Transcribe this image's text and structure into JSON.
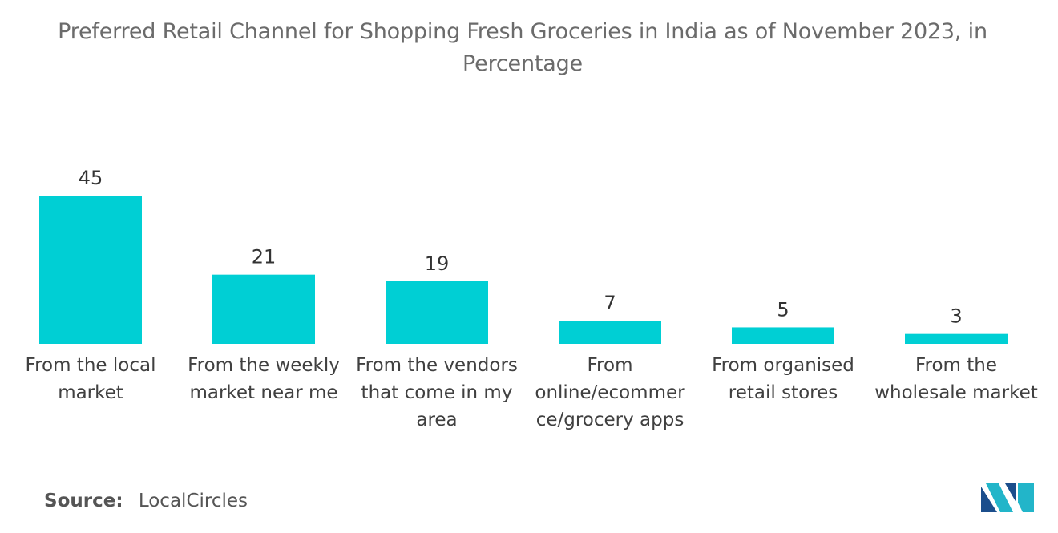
{
  "chart_data": {
    "type": "bar",
    "title": "Preferred Retail Channel for Shopping Fresh Groceries in India as of November 2023, in Percentage",
    "categories": [
      "From the local market",
      "From the weekly market near me",
      "From the vendors that come in my area",
      "From online/ecommerce/grocery apps",
      "From organised retail stores",
      "From the wholesale market"
    ],
    "category_lines": [
      [
        "From the local",
        "market"
      ],
      [
        "From the weekly",
        "market near me"
      ],
      [
        "From the vendors",
        "that come in my",
        "area"
      ],
      [
        "From",
        "online/ecommer",
        "ce/grocery apps"
      ],
      [
        "From organised",
        "retail stores"
      ],
      [
        "From the",
        "wholesale market"
      ]
    ],
    "values": [
      45,
      21,
      19,
      7,
      5,
      3
    ],
    "ylim": [
      0,
      45
    ],
    "grid": false,
    "bar_color": "#00cfd4",
    "xlabel": "",
    "ylabel": ""
  },
  "source": {
    "label": "Source:",
    "value": "LocalCircles"
  },
  "logo": {
    "name": "mordor-intelligence-logo",
    "colors": [
      "#1b4e8c",
      "#22b5c9"
    ]
  }
}
